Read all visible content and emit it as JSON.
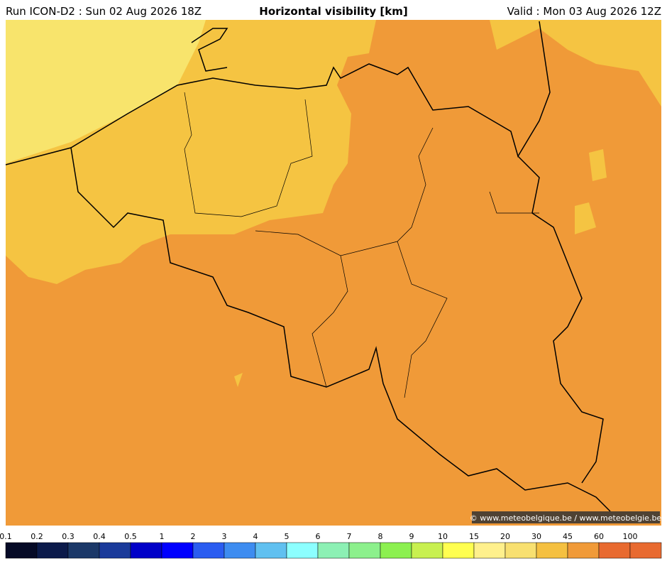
{
  "header": {
    "run": "Run ICON-D2 : Sun 02 Aug 2026 18Z",
    "title": "Horizontal visibility [km]",
    "valid": "Valid : Mon 03 Aug 2026 12Z"
  },
  "credit": "© www.meteobelgique.be / www.meteobelgie.be",
  "legend": {
    "ticks": [
      0.1,
      0.2,
      0.3,
      0.4,
      0.5,
      1,
      2,
      3,
      4,
      5,
      6,
      7,
      8,
      9,
      10,
      15,
      20,
      30,
      45,
      60,
      100
    ],
    "colors": [
      "#050a26",
      "#0b1a4a",
      "#1b3868",
      "#1a3a9a",
      "#0000c8",
      "#0000ff",
      "#2a5cf0",
      "#3d8cf0",
      "#60c0f0",
      "#8cffff",
      "#8cf0b4",
      "#8cf08c",
      "#8cf050",
      "#c8f050",
      "#ffff50",
      "#fff08c",
      "#f8e070",
      "#f5c040",
      "#f09a38",
      "#e86a30",
      "#e86a30"
    ]
  }
}
